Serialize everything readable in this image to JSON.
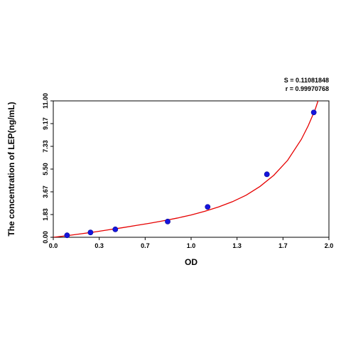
{
  "chart_data": {
    "type": "scatter",
    "xlabel": "OD",
    "ylabel": "The concentration of LEP(ng/mL)",
    "xlim": [
      0.0,
      2.0
    ],
    "ylim": [
      0.0,
      11.0
    ],
    "x_ticks": [
      "0.0",
      "0.3",
      "0.7",
      "1.0",
      "1.3",
      "1.7",
      "2.0"
    ],
    "y_ticks": [
      "0.00",
      "1.83",
      "3.67",
      "5.50",
      "7.33",
      "9.17",
      "11.00"
    ],
    "stats": [
      "S = 0.11081848",
      "r = 0.99970768"
    ],
    "series": [
      {
        "kind": "points",
        "x": [
          0.1,
          0.27,
          0.45,
          0.83,
          1.12,
          1.55,
          1.89
        ],
        "y": [
          0.16,
          0.39,
          0.64,
          1.27,
          2.45,
          5.08,
          10.07
        ],
        "color": "#1515dd"
      },
      {
        "kind": "fit-curve",
        "x": [
          0.0,
          0.1,
          0.2,
          0.3,
          0.4,
          0.5,
          0.6,
          0.7,
          0.8,
          0.9,
          1.0,
          1.1,
          1.2,
          1.3,
          1.4,
          1.5,
          1.6,
          1.7,
          1.8,
          1.85,
          1.9,
          1.93
        ],
        "y": [
          0.0,
          0.13,
          0.28,
          0.43,
          0.6,
          0.77,
          0.95,
          1.13,
          1.33,
          1.55,
          1.8,
          2.1,
          2.45,
          2.87,
          3.4,
          4.1,
          5.0,
          6.2,
          7.9,
          9.0,
          10.3,
          11.3
        ],
        "color": "#e60000"
      }
    ]
  }
}
